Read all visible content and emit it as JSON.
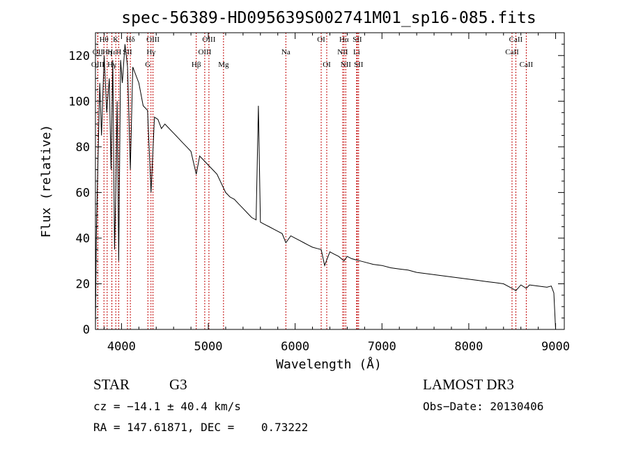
{
  "chart_data": {
    "type": "line",
    "title": "spec-56389-HD095639S002741M01_sp16-085.fits",
    "xlabel": "Wavelength (Å)",
    "ylabel": "Flux (relative)",
    "xlim": [
      3700,
      9100
    ],
    "ylim": [
      0,
      130
    ],
    "xticks": [
      4000,
      5000,
      6000,
      7000,
      8000,
      9000
    ],
    "xtick_labels": [
      "4000",
      "5000",
      "6000",
      "7000",
      "8000",
      "9000"
    ],
    "yticks": [
      0,
      20,
      40,
      60,
      80,
      100,
      120
    ],
    "ytick_labels": [
      "0",
      "20",
      "40",
      "60",
      "80",
      "100",
      "120"
    ],
    "grid": false,
    "series": [
      {
        "name": "Flux",
        "x": [
          3700,
          3710,
          3730,
          3750,
          3770,
          3800,
          3830,
          3860,
          3880,
          3900,
          3920,
          3934,
          3950,
          3968,
          3990,
          4010,
          4040,
          4070,
          4102,
          4130,
          4160,
          4200,
          4250,
          4300,
          4340,
          4380,
          4420,
          4460,
          4500,
          4550,
          4600,
          4650,
          4700,
          4750,
          4800,
          4861,
          4900,
          4950,
          5000,
          5050,
          5100,
          5150,
          5175,
          5200,
          5250,
          5300,
          5350,
          5400,
          5450,
          5500,
          5550,
          5577,
          5600,
          5650,
          5700,
          5750,
          5800,
          5850,
          5893,
          5950,
          6000,
          6050,
          6100,
          6150,
          6200,
          6250,
          6300,
          6340,
          6400,
          6450,
          6500,
          6563,
          6600,
          6650,
          6700,
          6750,
          6800,
          6900,
          7000,
          7100,
          7200,
          7300,
          7400,
          7500,
          7600,
          7700,
          7800,
          7900,
          8000,
          8100,
          8200,
          8300,
          8400,
          8498,
          8542,
          8600,
          8662,
          8700,
          8800,
          8900,
          8950,
          8980,
          9000
        ],
        "y": [
          0,
          40,
          75,
          108,
          85,
          120,
          95,
          110,
          70,
          118,
          35,
          60,
          100,
          30,
          118,
          108,
          125,
          115,
          70,
          115,
          112,
          108,
          98,
          96,
          60,
          93,
          92,
          88,
          90,
          88,
          86,
          84,
          82,
          80,
          78,
          68,
          76,
          74,
          72,
          70,
          68,
          64,
          62,
          60,
          58,
          57,
          55,
          53,
          51,
          49,
          48,
          98,
          47,
          46,
          45,
          44,
          43,
          42,
          38,
          41,
          40,
          39,
          38,
          37,
          36,
          35.5,
          35,
          28,
          34,
          33,
          32,
          30,
          32,
          31,
          30.5,
          30,
          29.5,
          28.5,
          28,
          27,
          26.5,
          26,
          25,
          24.5,
          24,
          23.5,
          23,
          22.5,
          22,
          21.5,
          21,
          20.5,
          20,
          18,
          17,
          19.5,
          18,
          19.5,
          19,
          18.5,
          19,
          16,
          0
        ]
      }
    ],
    "lines": [
      {
        "name": "Hθ",
        "x": 3798,
        "row": 0
      },
      {
        "name": "OII",
        "x": 3727,
        "row": 1
      },
      {
        "name": "OIII",
        "x": 3727,
        "row": 2
      },
      {
        "name": "Hη",
        "x": 3835,
        "row": 1
      },
      {
        "name": "K",
        "x": 3934,
        "row": 0
      },
      {
        "name": "Hε",
        "x": 3889,
        "row": 1
      },
      {
        "name": "H",
        "x": 3968,
        "row": 1
      },
      {
        "name": "Hγ",
        "x": 3889,
        "row": 2
      },
      {
        "name": "SII",
        "x": 4069,
        "row": 1
      },
      {
        "name": "Hδ",
        "x": 4102,
        "row": 0
      },
      {
        "name": "OIII",
        "x": 4363,
        "row": 0
      },
      {
        "name": "Hγ",
        "x": 4340,
        "row": 1
      },
      {
        "name": "G",
        "x": 4304,
        "row": 2
      },
      {
        "name": "Hβ",
        "x": 4861,
        "row": 2
      },
      {
        "name": "OIII",
        "x": 5007,
        "row": 0
      },
      {
        "name": "OIII",
        "x": 4959,
        "row": 1
      },
      {
        "name": "Mg",
        "x": 5175,
        "row": 2
      },
      {
        "name": "Na",
        "x": 5893,
        "row": 1
      },
      {
        "name": "OI",
        "x": 6300,
        "row": 0
      },
      {
        "name": "OI",
        "x": 6364,
        "row": 2
      },
      {
        "name": "Hα",
        "x": 6563,
        "row": 0
      },
      {
        "name": "NII",
        "x": 6548,
        "row": 1
      },
      {
        "name": "NII",
        "x": 6583,
        "row": 2
      },
      {
        "name": "SII",
        "x": 6716,
        "row": 0
      },
      {
        "name": "Li",
        "x": 6708,
        "row": 1
      },
      {
        "name": "SII",
        "x": 6731,
        "row": 2
      },
      {
        "name": "CaII",
        "x": 8542,
        "row": 0
      },
      {
        "name": "CaII",
        "x": 8498,
        "row": 1
      },
      {
        "name": "CaII",
        "x": 8662,
        "row": 2
      }
    ]
  },
  "info": {
    "class": "STAR",
    "subclass": "G3",
    "survey": "LAMOST DR3",
    "cz": "cz = −14.1 ± 40.4 km/s",
    "obs_date": "Obs−Date: 20130406",
    "coords": "RA = 147.61871, DEC =    0.73222"
  }
}
